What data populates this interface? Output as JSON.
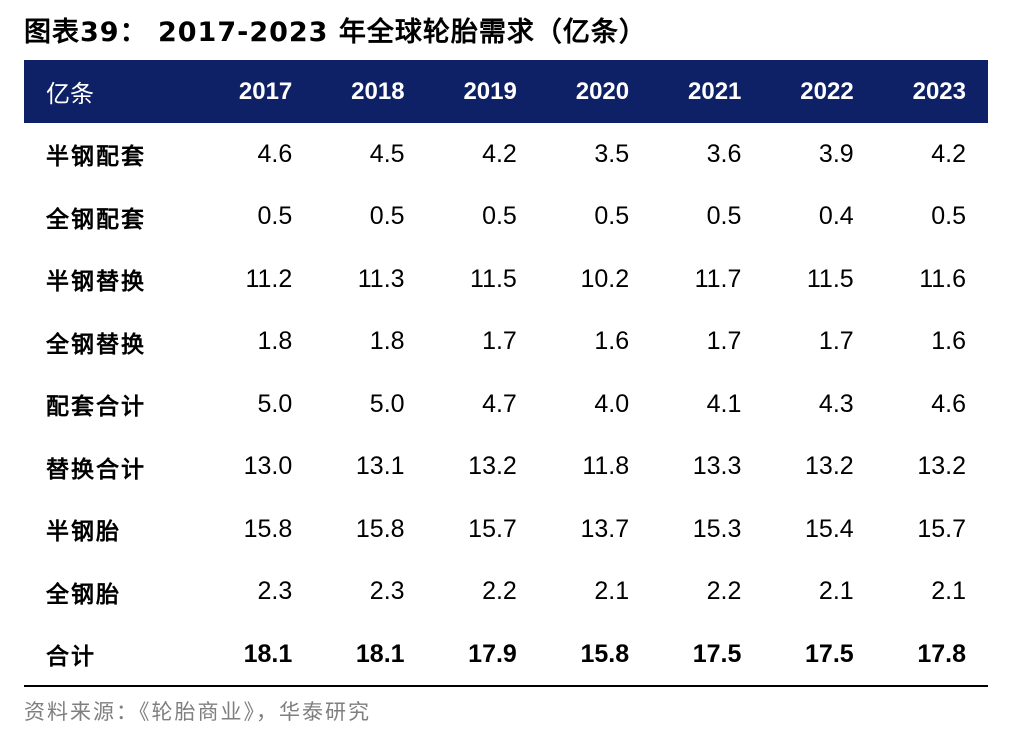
{
  "title": "图表39：  2017-2023 年全球轮胎需求（亿条）",
  "table": {
    "header": [
      "亿条",
      "2017",
      "2018",
      "2019",
      "2020",
      "2021",
      "2022",
      "2023"
    ],
    "rows": [
      {
        "label": "半钢配套",
        "values": [
          "4.6",
          "4.5",
          "4.2",
          "3.5",
          "3.6",
          "3.9",
          "4.2"
        ]
      },
      {
        "label": "全钢配套",
        "values": [
          "0.5",
          "0.5",
          "0.5",
          "0.5",
          "0.5",
          "0.4",
          "0.5"
        ]
      },
      {
        "label": "半钢替换",
        "values": [
          "11.2",
          "11.3",
          "11.5",
          "10.2",
          "11.7",
          "11.5",
          "11.6"
        ]
      },
      {
        "label": "全钢替换",
        "values": [
          "1.8",
          "1.8",
          "1.7",
          "1.6",
          "1.7",
          "1.7",
          "1.6"
        ]
      },
      {
        "label": "配套合计",
        "values": [
          "5.0",
          "5.0",
          "4.7",
          "4.0",
          "4.1",
          "4.3",
          "4.6"
        ]
      },
      {
        "label": "替换合计",
        "values": [
          "13.0",
          "13.1",
          "13.2",
          "11.8",
          "13.3",
          "13.2",
          "13.2"
        ]
      },
      {
        "label": "半钢胎",
        "values": [
          "15.8",
          "15.8",
          "15.7",
          "13.7",
          "15.3",
          "15.4",
          "15.7"
        ]
      },
      {
        "label": "全钢胎",
        "values": [
          "2.3",
          "2.3",
          "2.2",
          "2.1",
          "2.2",
          "2.1",
          "2.1"
        ]
      },
      {
        "label": "合计",
        "values": [
          "18.1",
          "18.1",
          "17.9",
          "15.8",
          "17.5",
          "17.5",
          "17.8"
        ]
      }
    ]
  },
  "source": "资料来源：《轮胎商业》，华泰研究",
  "colors": {
    "header_bg": "#0f2166",
    "header_text": "#ffffff",
    "source_text": "#7f7f7f"
  }
}
